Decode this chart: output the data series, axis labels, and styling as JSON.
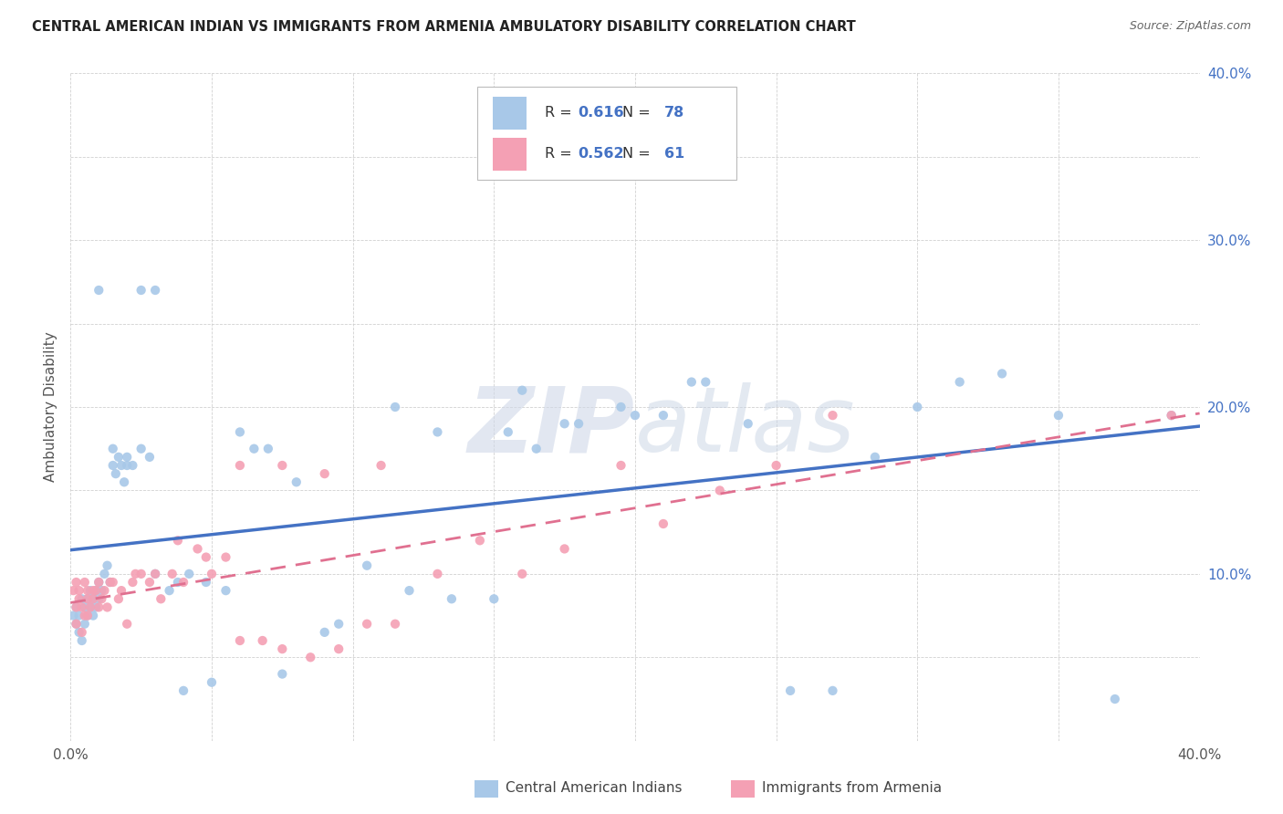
{
  "title": "CENTRAL AMERICAN INDIAN VS IMMIGRANTS FROM ARMENIA AMBULATORY DISABILITY CORRELATION CHART",
  "source": "Source: ZipAtlas.com",
  "ylabel": "Ambulatory Disability",
  "xlim": [
    0.0,
    0.4
  ],
  "ylim": [
    0.0,
    0.4
  ],
  "blue_R": 0.616,
  "blue_N": 78,
  "pink_R": 0.562,
  "pink_N": 61,
  "blue_color": "#a8c8e8",
  "pink_color": "#f4a0b4",
  "blue_line_color": "#4472c4",
  "pink_line_color": "#e07090",
  "legend_label_blue": "Central American Indians",
  "legend_label_pink": "Immigrants from Armenia",
  "blue_scatter_x": [
    0.001,
    0.002,
    0.002,
    0.003,
    0.003,
    0.004,
    0.004,
    0.005,
    0.005,
    0.006,
    0.006,
    0.007,
    0.007,
    0.008,
    0.008,
    0.009,
    0.009,
    0.01,
    0.01,
    0.011,
    0.012,
    0.013,
    0.014,
    0.015,
    0.016,
    0.017,
    0.018,
    0.019,
    0.02,
    0.022,
    0.025,
    0.028,
    0.03,
    0.035,
    0.038,
    0.042,
    0.048,
    0.055,
    0.06,
    0.065,
    0.07,
    0.08,
    0.095,
    0.105,
    0.12,
    0.135,
    0.15,
    0.165,
    0.18,
    0.195,
    0.21,
    0.225,
    0.24,
    0.255,
    0.27,
    0.285,
    0.3,
    0.315,
    0.33,
    0.35,
    0.37,
    0.39,
    0.2,
    0.22,
    0.13,
    0.155,
    0.175,
    0.16,
    0.115,
    0.09,
    0.075,
    0.05,
    0.04,
    0.03,
    0.025,
    0.02,
    0.015,
    0.01
  ],
  "blue_scatter_y": [
    0.075,
    0.08,
    0.07,
    0.065,
    0.075,
    0.085,
    0.06,
    0.07,
    0.08,
    0.075,
    0.085,
    0.09,
    0.08,
    0.075,
    0.085,
    0.09,
    0.08,
    0.085,
    0.095,
    0.09,
    0.1,
    0.105,
    0.095,
    0.165,
    0.16,
    0.17,
    0.165,
    0.155,
    0.17,
    0.165,
    0.175,
    0.17,
    0.1,
    0.09,
    0.095,
    0.1,
    0.095,
    0.09,
    0.185,
    0.175,
    0.175,
    0.155,
    0.07,
    0.105,
    0.09,
    0.085,
    0.085,
    0.175,
    0.19,
    0.2,
    0.195,
    0.215,
    0.19,
    0.03,
    0.03,
    0.17,
    0.2,
    0.215,
    0.22,
    0.195,
    0.025,
    0.195,
    0.195,
    0.215,
    0.185,
    0.185,
    0.19,
    0.21,
    0.2,
    0.065,
    0.04,
    0.035,
    0.03,
    0.27,
    0.27,
    0.165,
    0.175,
    0.27
  ],
  "pink_scatter_x": [
    0.001,
    0.002,
    0.002,
    0.003,
    0.003,
    0.004,
    0.005,
    0.005,
    0.006,
    0.006,
    0.007,
    0.008,
    0.009,
    0.01,
    0.011,
    0.012,
    0.013,
    0.015,
    0.017,
    0.02,
    0.022,
    0.025,
    0.028,
    0.032,
    0.036,
    0.04,
    0.045,
    0.05,
    0.055,
    0.06,
    0.068,
    0.075,
    0.085,
    0.095,
    0.105,
    0.115,
    0.13,
    0.145,
    0.16,
    0.175,
    0.195,
    0.21,
    0.23,
    0.25,
    0.27,
    0.002,
    0.004,
    0.006,
    0.008,
    0.01,
    0.014,
    0.018,
    0.023,
    0.03,
    0.038,
    0.048,
    0.06,
    0.075,
    0.09,
    0.11,
    0.39
  ],
  "pink_scatter_y": [
    0.09,
    0.095,
    0.08,
    0.085,
    0.09,
    0.08,
    0.095,
    0.075,
    0.09,
    0.085,
    0.08,
    0.085,
    0.09,
    0.08,
    0.085,
    0.09,
    0.08,
    0.095,
    0.085,
    0.07,
    0.095,
    0.1,
    0.095,
    0.085,
    0.1,
    0.095,
    0.115,
    0.1,
    0.11,
    0.06,
    0.06,
    0.055,
    0.05,
    0.055,
    0.07,
    0.07,
    0.1,
    0.12,
    0.1,
    0.115,
    0.165,
    0.13,
    0.15,
    0.165,
    0.195,
    0.07,
    0.065,
    0.075,
    0.09,
    0.095,
    0.095,
    0.09,
    0.1,
    0.1,
    0.12,
    0.11,
    0.165,
    0.165,
    0.16,
    0.165,
    0.195
  ]
}
